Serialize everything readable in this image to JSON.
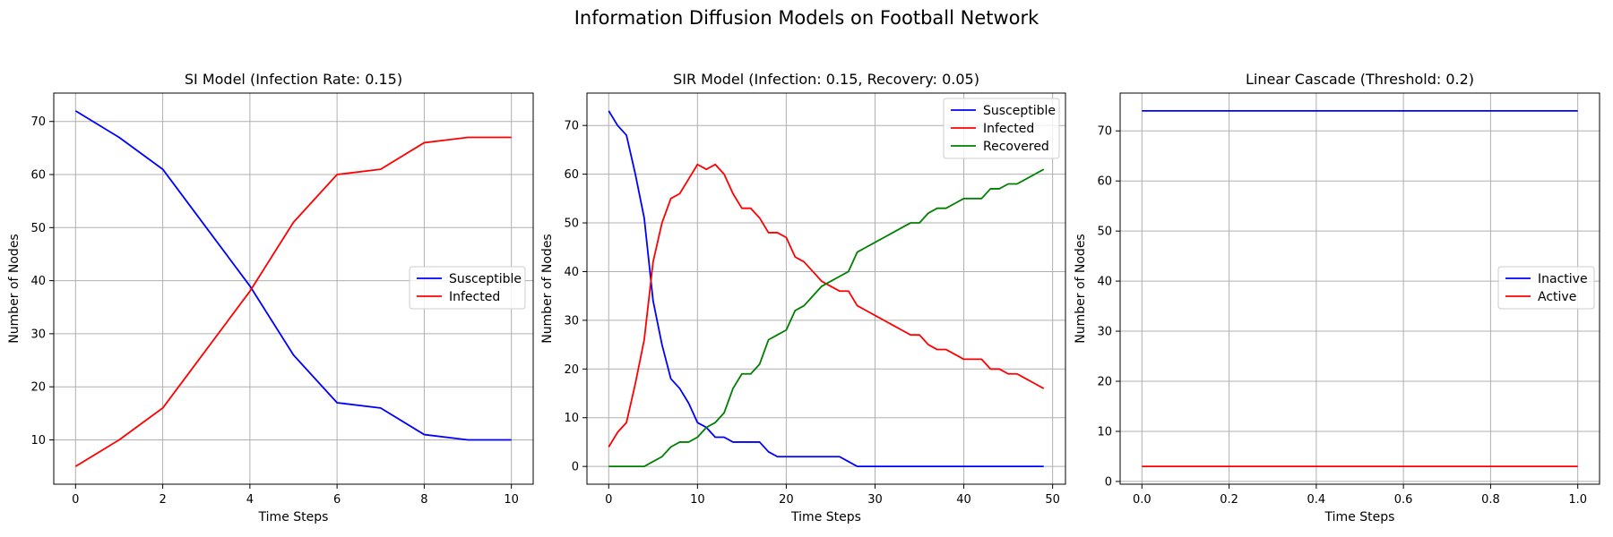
{
  "figure": {
    "title": "Information Diffusion Models on Football Network"
  },
  "chart_data": [
    {
      "type": "line",
      "title": "SI Model (Infection Rate: 0.15)",
      "xlabel": "Time Steps",
      "ylabel": "Number of Nodes",
      "xlim": [
        -0.5,
        10.5
      ],
      "ylim": [
        1.65,
        75.35
      ],
      "xticks": [
        0,
        2,
        4,
        6,
        8,
        10
      ],
      "xtick_labels": [
        "0",
        "2",
        "4",
        "6",
        "8",
        "10"
      ],
      "yticks": [
        10,
        20,
        30,
        40,
        50,
        60,
        70
      ],
      "ytick_labels": [
        "10",
        "20",
        "30",
        "40",
        "50",
        "60",
        "70"
      ],
      "grid": true,
      "legend_position": "center-right",
      "x": [
        0,
        1,
        2,
        3,
        4,
        5,
        6,
        7,
        8,
        9,
        10
      ],
      "series": [
        {
          "name": "Susceptible",
          "color": "#0000ff",
          "values": [
            72,
            67,
            61,
            50,
            39,
            26,
            17,
            16,
            11,
            10,
            10
          ]
        },
        {
          "name": "Infected",
          "color": "#ff0000",
          "values": [
            5,
            10,
            16,
            27,
            38,
            51,
            60,
            61,
            66,
            67,
            67
          ]
        }
      ]
    },
    {
      "type": "line",
      "title": "SIR Model (Infection: 0.15, Recovery: 0.05)",
      "xlabel": "Time Steps",
      "ylabel": "Number of Nodes",
      "xlim": [
        -2.45,
        51.45
      ],
      "ylim": [
        -3.65,
        76.65
      ],
      "xticks": [
        0,
        10,
        20,
        30,
        40,
        50
      ],
      "xtick_labels": [
        "0",
        "10",
        "20",
        "30",
        "40",
        "50"
      ],
      "yticks": [
        0,
        10,
        20,
        30,
        40,
        50,
        60,
        70
      ],
      "ytick_labels": [
        "0",
        "10",
        "20",
        "30",
        "40",
        "50",
        "60",
        "70"
      ],
      "grid": true,
      "legend_position": "top-right",
      "x": [
        0,
        1,
        2,
        3,
        4,
        5,
        6,
        7,
        8,
        9,
        10,
        11,
        12,
        13,
        14,
        15,
        16,
        17,
        18,
        19,
        20,
        21,
        22,
        23,
        24,
        25,
        26,
        27,
        28,
        29,
        30,
        31,
        32,
        33,
        34,
        35,
        36,
        37,
        38,
        39,
        40,
        41,
        42,
        43,
        44,
        45,
        46,
        47,
        48,
        49
      ],
      "series": [
        {
          "name": "Susceptible",
          "color": "#0000ff",
          "values": [
            73,
            70,
            68,
            60,
            51,
            34,
            25,
            18,
            16,
            13,
            9,
            8,
            6,
            6,
            5,
            5,
            5,
            5,
            3,
            2,
            2,
            2,
            2,
            2,
            2,
            2,
            2,
            1,
            0,
            0,
            0,
            0,
            0,
            0,
            0,
            0,
            0,
            0,
            0,
            0,
            0,
            0,
            0,
            0,
            0,
            0,
            0,
            0,
            0,
            0
          ]
        },
        {
          "name": "Infected",
          "color": "#ff0000",
          "values": [
            4,
            7,
            9,
            17,
            26,
            42,
            50,
            55,
            56,
            59,
            62,
            61,
            62,
            60,
            56,
            53,
            53,
            51,
            48,
            48,
            47,
            43,
            42,
            40,
            38,
            37,
            36,
            36,
            33,
            32,
            31,
            30,
            29,
            28,
            27,
            27,
            25,
            24,
            24,
            23,
            22,
            22,
            22,
            20,
            20,
            19,
            19,
            18,
            17,
            16
          ]
        },
        {
          "name": "Recovered",
          "color": "#008000",
          "values": [
            0,
            0,
            0,
            0,
            0,
            1,
            2,
            4,
            5,
            5,
            6,
            8,
            9,
            11,
            16,
            19,
            19,
            21,
            26,
            27,
            28,
            32,
            33,
            35,
            37,
            38,
            39,
            40,
            44,
            45,
            46,
            47,
            48,
            49,
            50,
            50,
            52,
            53,
            53,
            54,
            55,
            55,
            55,
            57,
            57,
            58,
            58,
            59,
            60,
            61
          ]
        }
      ]
    },
    {
      "type": "line",
      "title": "Linear Cascade (Threshold: 0.2)",
      "xlabel": "Time Steps",
      "ylabel": "Number of Nodes",
      "xlim": [
        -0.05,
        1.05
      ],
      "ylim": [
        -0.55,
        77.55
      ],
      "xticks": [
        0.0,
        0.2,
        0.4,
        0.6,
        0.8,
        1.0
      ],
      "xtick_labels": [
        "0.0",
        "0.2",
        "0.4",
        "0.6",
        "0.8",
        "1.0"
      ],
      "yticks": [
        0,
        10,
        20,
        30,
        40,
        50,
        60,
        70
      ],
      "ytick_labels": [
        "0",
        "10",
        "20",
        "30",
        "40",
        "50",
        "60",
        "70"
      ],
      "grid": true,
      "legend_position": "center-right",
      "x": [
        0,
        1
      ],
      "series": [
        {
          "name": "Inactive",
          "color": "#0000ff",
          "values": [
            74,
            74
          ]
        },
        {
          "name": "Active",
          "color": "#ff0000",
          "values": [
            3,
            3
          ]
        }
      ]
    }
  ]
}
